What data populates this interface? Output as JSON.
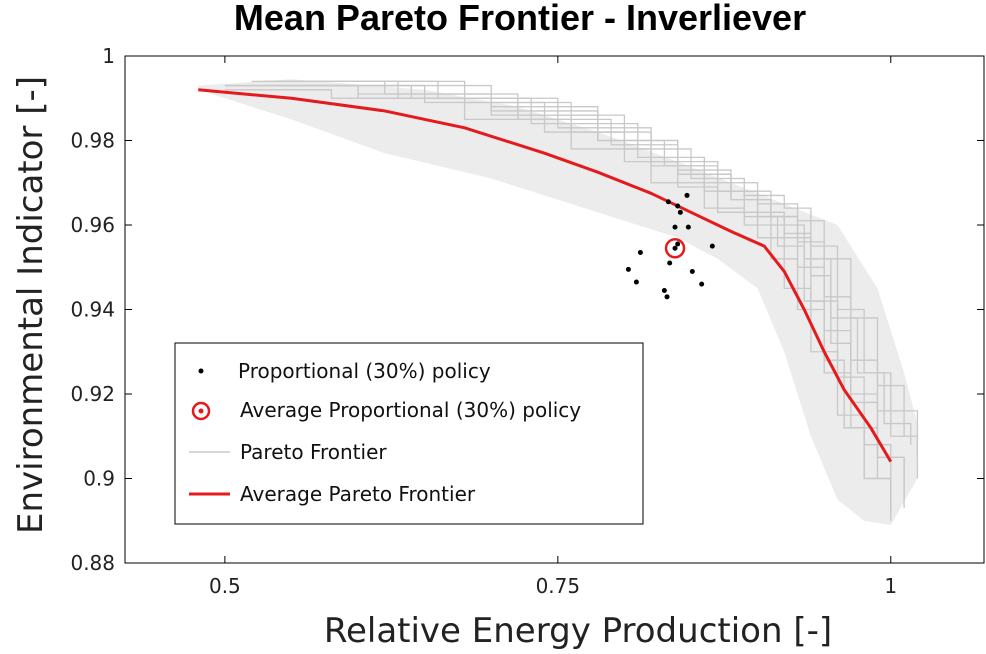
{
  "chart_data": {
    "type": "line",
    "title": "Mean Pareto Frontier - Inverliever",
    "xlabel": "Relative Energy Production [-]",
    "ylabel": "Environmental Indicator [-]",
    "xlim": [
      0.425,
      1.07
    ],
    "ylim": [
      0.88,
      1.0
    ],
    "xticks": [
      0.5,
      0.75,
      1
    ],
    "xtick_labels": [
      "0.5",
      "0.75",
      "1"
    ],
    "yticks": [
      0.88,
      0.9,
      0.92,
      0.94,
      0.96,
      0.98,
      1.0
    ],
    "ytick_labels": [
      "0.88",
      "0.9",
      "0.92",
      "0.94",
      "0.96",
      "0.98",
      "1"
    ],
    "grid": false,
    "legend_position": "bottom-left",
    "colors": {
      "average_frontier": "#e41a1c",
      "pareto_frontier": "#c8c8c8",
      "envelope": "#ececec",
      "policy_points": "#000000",
      "average_policy": "#e41a1c"
    },
    "legend": [
      {
        "key": "points",
        "label": "Proportional (30%) policy"
      },
      {
        "key": "avg_point",
        "label": "Average Proportional (30%) policy"
      },
      {
        "key": "pareto",
        "label": "Pareto Frontier"
      },
      {
        "key": "avg_frontier",
        "label": "Average Pareto Frontier"
      }
    ],
    "average_pareto_frontier": {
      "x": [
        0.48,
        0.55,
        0.62,
        0.68,
        0.74,
        0.78,
        0.82,
        0.85,
        0.88,
        0.905,
        0.92,
        0.935,
        0.95,
        0.965,
        0.985,
        1.0
      ],
      "y": [
        0.992,
        0.99,
        0.987,
        0.983,
        0.977,
        0.9725,
        0.9675,
        0.963,
        0.9585,
        0.955,
        0.949,
        0.94,
        0.93,
        0.921,
        0.912,
        0.904
      ]
    },
    "pareto_envelope": {
      "upper": {
        "x": [
          0.48,
          0.55,
          0.65,
          0.72,
          0.78,
          0.84,
          0.88,
          0.92,
          0.96,
          0.99,
          1.01,
          1.02
        ],
        "y": [
          0.993,
          0.9945,
          0.992,
          0.988,
          0.982,
          0.975,
          0.97,
          0.965,
          0.96,
          0.945,
          0.925,
          0.913
        ]
      },
      "lower": {
        "x": [
          1.02,
          1.0,
          0.98,
          0.96,
          0.94,
          0.92,
          0.9,
          0.87,
          0.84,
          0.8,
          0.75,
          0.7,
          0.62,
          0.55,
          0.48
        ],
        "y": [
          0.9,
          0.889,
          0.89,
          0.895,
          0.91,
          0.93,
          0.945,
          0.952,
          0.957,
          0.961,
          0.966,
          0.971,
          0.977,
          0.985,
          0.992
        ]
      }
    },
    "pareto_frontiers": [
      {
        "x": [
          0.5,
          0.6,
          0.7,
          0.78,
          0.84,
          0.88,
          0.91,
          0.93,
          0.95,
          0.97,
          0.99,
          1.01
        ],
        "y": [
          0.993,
          0.991,
          0.987,
          0.98,
          0.973,
          0.968,
          0.962,
          0.95,
          0.935,
          0.92,
          0.905,
          0.895
        ]
      },
      {
        "x": [
          0.52,
          0.62,
          0.72,
          0.8,
          0.85,
          0.89,
          0.92,
          0.94,
          0.96,
          0.98,
          1.0,
          1.02
        ],
        "y": [
          0.994,
          0.991,
          0.986,
          0.978,
          0.971,
          0.967,
          0.964,
          0.955,
          0.94,
          0.925,
          0.91,
          0.9
        ]
      },
      {
        "x": [
          0.5,
          0.58,
          0.68,
          0.76,
          0.82,
          0.86,
          0.89,
          0.91,
          0.93,
          0.95,
          0.97,
          0.99,
          1.0
        ],
        "y": [
          0.992,
          0.99,
          0.985,
          0.978,
          0.97,
          0.964,
          0.96,
          0.952,
          0.94,
          0.925,
          0.912,
          0.9,
          0.892
        ]
      },
      {
        "x": [
          0.53,
          0.63,
          0.73,
          0.81,
          0.86,
          0.9,
          0.93,
          0.95,
          0.97,
          0.99,
          1.01
        ],
        "y": [
          0.994,
          0.99,
          0.984,
          0.976,
          0.97,
          0.965,
          0.961,
          0.952,
          0.938,
          0.922,
          0.91
        ]
      },
      {
        "x": [
          0.55,
          0.65,
          0.74,
          0.8,
          0.84,
          0.87,
          0.9,
          0.92,
          0.94,
          0.96,
          0.98,
          1.0
        ],
        "y": [
          0.993,
          0.989,
          0.982,
          0.975,
          0.969,
          0.963,
          0.957,
          0.945,
          0.93,
          0.915,
          0.9,
          0.89
        ]
      },
      {
        "x": [
          0.56,
          0.66,
          0.75,
          0.82,
          0.87,
          0.9,
          0.92,
          0.94,
          0.955,
          0.97,
          0.99,
          1.01
        ],
        "y": [
          0.994,
          0.99,
          0.983,
          0.975,
          0.968,
          0.962,
          0.958,
          0.948,
          0.932,
          0.918,
          0.905,
          0.893
        ]
      },
      {
        "x": [
          0.54,
          0.64,
          0.72,
          0.79,
          0.84,
          0.88,
          0.91,
          0.93,
          0.95,
          0.97,
          0.99,
          1.02
        ],
        "y": [
          0.993,
          0.99,
          0.985,
          0.979,
          0.972,
          0.966,
          0.962,
          0.956,
          0.943,
          0.928,
          0.916,
          0.905
        ]
      },
      {
        "x": [
          0.58,
          0.68,
          0.76,
          0.82,
          0.86,
          0.89,
          0.915,
          0.935,
          0.95,
          0.965,
          0.98,
          1.0
        ],
        "y": [
          0.994,
          0.989,
          0.982,
          0.974,
          0.968,
          0.962,
          0.955,
          0.942,
          0.928,
          0.912,
          0.9,
          0.893
        ]
      },
      {
        "x": [
          0.6,
          0.7,
          0.78,
          0.84,
          0.88,
          0.91,
          0.935,
          0.955,
          0.975,
          0.995,
          1.015
        ],
        "y": [
          0.993,
          0.988,
          0.98,
          0.972,
          0.966,
          0.96,
          0.952,
          0.938,
          0.925,
          0.913,
          0.908
        ]
      },
      {
        "x": [
          0.5,
          0.6,
          0.7,
          0.78,
          0.83,
          0.87,
          0.9,
          0.92,
          0.94,
          0.96,
          0.98,
          1.0
        ],
        "y": [
          0.993,
          0.99,
          0.986,
          0.98,
          0.974,
          0.968,
          0.963,
          0.957,
          0.942,
          0.924,
          0.908,
          0.897
        ]
      }
    ],
    "proportional_policy_points": {
      "x": [
        0.833,
        0.847,
        0.84,
        0.838,
        0.842,
        0.848,
        0.812,
        0.834,
        0.84,
        0.866,
        0.803,
        0.809,
        0.83,
        0.851,
        0.858,
        0.832
      ],
      "y": [
        0.9655,
        0.967,
        0.9645,
        0.9595,
        0.963,
        0.9595,
        0.9535,
        0.951,
        0.9555,
        0.955,
        0.9495,
        0.9465,
        0.9445,
        0.949,
        0.946,
        0.943
      ]
    },
    "average_proportional_policy": {
      "x": 0.838,
      "y": 0.9545
    }
  }
}
